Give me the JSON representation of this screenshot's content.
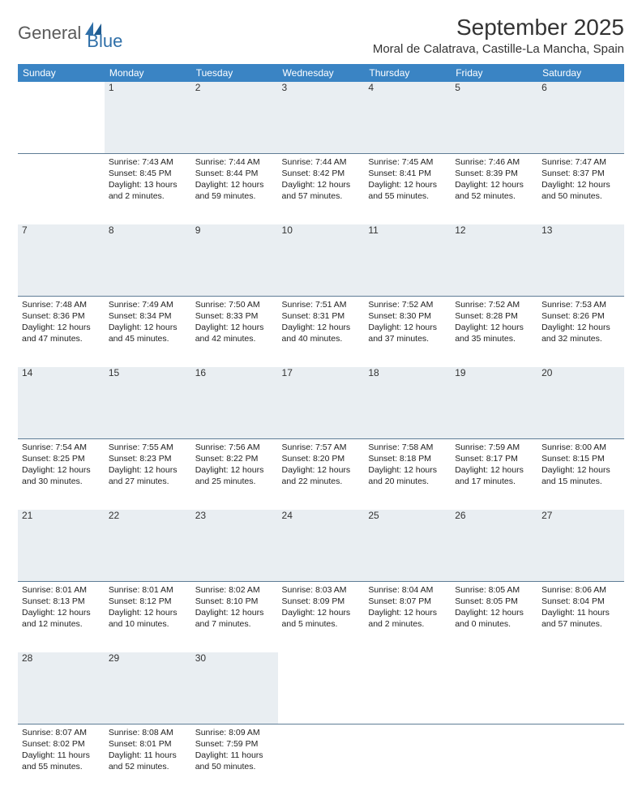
{
  "logo": {
    "text1": "General",
    "text2": "Blue"
  },
  "title": "September 2025",
  "location": "Moral de Calatrava, Castille-La Mancha, Spain",
  "colors": {
    "header_bg": "#3a84c4",
    "daynum_bg": "#e9eef2",
    "daynum_border": "#5f7d96",
    "text": "#333333",
    "logo_gray": "#5a5a5a",
    "logo_blue": "#2f6fa8"
  },
  "day_headers": [
    "Sunday",
    "Monday",
    "Tuesday",
    "Wednesday",
    "Thursday",
    "Friday",
    "Saturday"
  ],
  "weeks": [
    {
      "nums": [
        "",
        "1",
        "2",
        "3",
        "4",
        "5",
        "6"
      ],
      "cells": [
        null,
        {
          "sr": "Sunrise: 7:43 AM",
          "ss": "Sunset: 8:45 PM",
          "dl": "Daylight: 13 hours and 2 minutes."
        },
        {
          "sr": "Sunrise: 7:44 AM",
          "ss": "Sunset: 8:44 PM",
          "dl": "Daylight: 12 hours and 59 minutes."
        },
        {
          "sr": "Sunrise: 7:44 AM",
          "ss": "Sunset: 8:42 PM",
          "dl": "Daylight: 12 hours and 57 minutes."
        },
        {
          "sr": "Sunrise: 7:45 AM",
          "ss": "Sunset: 8:41 PM",
          "dl": "Daylight: 12 hours and 55 minutes."
        },
        {
          "sr": "Sunrise: 7:46 AM",
          "ss": "Sunset: 8:39 PM",
          "dl": "Daylight: 12 hours and 52 minutes."
        },
        {
          "sr": "Sunrise: 7:47 AM",
          "ss": "Sunset: 8:37 PM",
          "dl": "Daylight: 12 hours and 50 minutes."
        }
      ]
    },
    {
      "nums": [
        "7",
        "8",
        "9",
        "10",
        "11",
        "12",
        "13"
      ],
      "cells": [
        {
          "sr": "Sunrise: 7:48 AM",
          "ss": "Sunset: 8:36 PM",
          "dl": "Daylight: 12 hours and 47 minutes."
        },
        {
          "sr": "Sunrise: 7:49 AM",
          "ss": "Sunset: 8:34 PM",
          "dl": "Daylight: 12 hours and 45 minutes."
        },
        {
          "sr": "Sunrise: 7:50 AM",
          "ss": "Sunset: 8:33 PM",
          "dl": "Daylight: 12 hours and 42 minutes."
        },
        {
          "sr": "Sunrise: 7:51 AM",
          "ss": "Sunset: 8:31 PM",
          "dl": "Daylight: 12 hours and 40 minutes."
        },
        {
          "sr": "Sunrise: 7:52 AM",
          "ss": "Sunset: 8:30 PM",
          "dl": "Daylight: 12 hours and 37 minutes."
        },
        {
          "sr": "Sunrise: 7:52 AM",
          "ss": "Sunset: 8:28 PM",
          "dl": "Daylight: 12 hours and 35 minutes."
        },
        {
          "sr": "Sunrise: 7:53 AM",
          "ss": "Sunset: 8:26 PM",
          "dl": "Daylight: 12 hours and 32 minutes."
        }
      ]
    },
    {
      "nums": [
        "14",
        "15",
        "16",
        "17",
        "18",
        "19",
        "20"
      ],
      "cells": [
        {
          "sr": "Sunrise: 7:54 AM",
          "ss": "Sunset: 8:25 PM",
          "dl": "Daylight: 12 hours and 30 minutes."
        },
        {
          "sr": "Sunrise: 7:55 AM",
          "ss": "Sunset: 8:23 PM",
          "dl": "Daylight: 12 hours and 27 minutes."
        },
        {
          "sr": "Sunrise: 7:56 AM",
          "ss": "Sunset: 8:22 PM",
          "dl": "Daylight: 12 hours and 25 minutes."
        },
        {
          "sr": "Sunrise: 7:57 AM",
          "ss": "Sunset: 8:20 PM",
          "dl": "Daylight: 12 hours and 22 minutes."
        },
        {
          "sr": "Sunrise: 7:58 AM",
          "ss": "Sunset: 8:18 PM",
          "dl": "Daylight: 12 hours and 20 minutes."
        },
        {
          "sr": "Sunrise: 7:59 AM",
          "ss": "Sunset: 8:17 PM",
          "dl": "Daylight: 12 hours and 17 minutes."
        },
        {
          "sr": "Sunrise: 8:00 AM",
          "ss": "Sunset: 8:15 PM",
          "dl": "Daylight: 12 hours and 15 minutes."
        }
      ]
    },
    {
      "nums": [
        "21",
        "22",
        "23",
        "24",
        "25",
        "26",
        "27"
      ],
      "cells": [
        {
          "sr": "Sunrise: 8:01 AM",
          "ss": "Sunset: 8:13 PM",
          "dl": "Daylight: 12 hours and 12 minutes."
        },
        {
          "sr": "Sunrise: 8:01 AM",
          "ss": "Sunset: 8:12 PM",
          "dl": "Daylight: 12 hours and 10 minutes."
        },
        {
          "sr": "Sunrise: 8:02 AM",
          "ss": "Sunset: 8:10 PM",
          "dl": "Daylight: 12 hours and 7 minutes."
        },
        {
          "sr": "Sunrise: 8:03 AM",
          "ss": "Sunset: 8:09 PM",
          "dl": "Daylight: 12 hours and 5 minutes."
        },
        {
          "sr": "Sunrise: 8:04 AM",
          "ss": "Sunset: 8:07 PM",
          "dl": "Daylight: 12 hours and 2 minutes."
        },
        {
          "sr": "Sunrise: 8:05 AM",
          "ss": "Sunset: 8:05 PM",
          "dl": "Daylight: 12 hours and 0 minutes."
        },
        {
          "sr": "Sunrise: 8:06 AM",
          "ss": "Sunset: 8:04 PM",
          "dl": "Daylight: 11 hours and 57 minutes."
        }
      ]
    },
    {
      "nums": [
        "28",
        "29",
        "30",
        "",
        "",
        "",
        ""
      ],
      "cells": [
        {
          "sr": "Sunrise: 8:07 AM",
          "ss": "Sunset: 8:02 PM",
          "dl": "Daylight: 11 hours and 55 minutes."
        },
        {
          "sr": "Sunrise: 8:08 AM",
          "ss": "Sunset: 8:01 PM",
          "dl": "Daylight: 11 hours and 52 minutes."
        },
        {
          "sr": "Sunrise: 8:09 AM",
          "ss": "Sunset: 7:59 PM",
          "dl": "Daylight: 11 hours and 50 minutes."
        },
        null,
        null,
        null,
        null
      ]
    }
  ]
}
